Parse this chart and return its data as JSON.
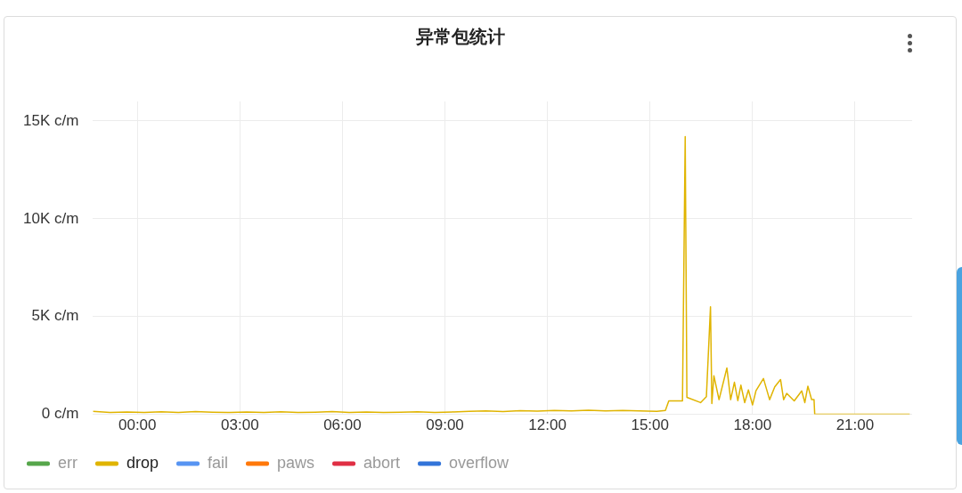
{
  "chart_data": {
    "type": "line",
    "title": "异常包统计",
    "xlim": [
      -1.3,
      22.67
    ],
    "xticks": [
      {
        "value": 0,
        "label": "00:00"
      },
      {
        "value": 3,
        "label": "03:00"
      },
      {
        "value": 6,
        "label": "06:00"
      },
      {
        "value": 9,
        "label": "09:00"
      },
      {
        "value": 12,
        "label": "12:00"
      },
      {
        "value": 15,
        "label": "15:00"
      },
      {
        "value": 18,
        "label": "18:00"
      },
      {
        "value": 21,
        "label": "21:00"
      }
    ],
    "ylim": [
      0,
      16000
    ],
    "yticks": [
      {
        "value": 0,
        "label": "0 c/m"
      },
      {
        "value": 5000,
        "label": "5K c/m"
      },
      {
        "value": 10000,
        "label": "10K c/m"
      },
      {
        "value": 15000,
        "label": "15K c/m"
      }
    ],
    "grid": true,
    "legend": "bottom left",
    "marker": "none",
    "line_style": "solid",
    "x": [
      -1.3,
      -0.8,
      -0.3,
      0.2,
      0.7,
      1.2,
      1.7,
      2.2,
      2.7,
      3.2,
      3.7,
      4.2,
      4.7,
      5.2,
      5.7,
      6.2,
      6.7,
      7.2,
      7.7,
      8.2,
      8.7,
      9.2,
      9.7,
      10.2,
      10.7,
      11.2,
      11.7,
      12.2,
      12.7,
      13.2,
      13.7,
      14.2,
      14.7,
      15.2,
      15.45,
      15.55,
      15.95,
      16.03,
      16.08,
      16.48,
      16.65,
      16.77,
      16.81,
      16.87,
      17.02,
      17.25,
      17.36,
      17.47,
      17.57,
      17.66,
      17.77,
      17.88,
      18.0,
      18.1,
      18.32,
      18.5,
      18.65,
      18.82,
      18.91,
      19.0,
      19.22,
      19.44,
      19.53,
      19.62,
      19.73,
      19.8,
      19.82,
      20.5,
      21.5,
      22.6
    ],
    "series": [
      {
        "name": "err",
        "color": "#56a64b",
        "values": [
          null,
          null,
          null,
          null,
          null,
          null,
          null,
          null,
          null,
          null,
          null,
          null,
          null,
          null,
          null,
          null,
          null,
          null,
          null,
          null,
          null,
          null,
          null,
          null,
          null,
          null,
          null,
          null,
          null,
          null,
          null,
          null,
          null,
          null,
          null,
          null,
          null,
          null,
          null,
          null,
          null,
          null,
          null,
          null,
          null,
          null,
          null,
          null,
          null,
          null,
          null,
          null,
          null,
          null,
          null,
          null,
          null,
          null,
          null,
          null,
          null,
          null,
          null,
          null,
          null,
          null,
          null,
          null,
          null,
          null
        ]
      },
      {
        "name": "drop",
        "color": "#e0b400",
        "values": [
          150,
          100,
          120,
          90,
          130,
          100,
          140,
          110,
          90,
          120,
          100,
          130,
          90,
          110,
          140,
          100,
          120,
          90,
          110,
          130,
          100,
          120,
          150,
          170,
          140,
          190,
          160,
          200,
          170,
          210,
          180,
          200,
          170,
          150,
          200,
          690,
          690,
          14200,
          870,
          600,
          900,
          5500,
          550,
          1970,
          750,
          2370,
          750,
          1640,
          700,
          1490,
          600,
          1250,
          480,
          1200,
          1830,
          750,
          1400,
          1780,
          750,
          1070,
          690,
          1200,
          600,
          1440,
          750,
          750,
          0,
          0,
          0,
          0
        ]
      },
      {
        "name": "fail",
        "color": "#5794f2",
        "values": [
          null,
          null,
          null,
          null,
          null,
          null,
          null,
          null,
          null,
          null,
          null,
          null,
          null,
          null,
          null,
          null,
          null,
          null,
          null,
          null,
          null,
          null,
          null,
          null,
          null,
          null,
          null,
          null,
          null,
          null,
          null,
          null,
          null,
          null,
          null,
          null,
          null,
          null,
          null,
          null,
          null,
          null,
          null,
          null,
          null,
          null,
          null,
          null,
          null,
          null,
          null,
          null,
          null,
          null,
          null,
          null,
          null,
          null,
          null,
          null,
          null,
          null,
          null,
          null,
          null,
          null,
          null,
          null,
          null,
          null
        ]
      },
      {
        "name": "paws",
        "color": "#ff780a",
        "values": [
          null,
          null,
          null,
          null,
          null,
          null,
          null,
          null,
          null,
          null,
          null,
          null,
          null,
          null,
          null,
          null,
          null,
          null,
          null,
          null,
          null,
          null,
          null,
          null,
          null,
          null,
          null,
          null,
          null,
          null,
          null,
          null,
          null,
          null,
          null,
          null,
          null,
          null,
          null,
          null,
          null,
          null,
          null,
          null,
          null,
          null,
          null,
          null,
          null,
          null,
          null,
          null,
          null,
          null,
          null,
          null,
          null,
          null,
          null,
          null,
          null,
          null,
          null,
          null,
          null,
          null,
          null,
          null,
          null,
          null
        ]
      },
      {
        "name": "abort",
        "color": "#e02f44",
        "values": [
          null,
          null,
          null,
          null,
          null,
          null,
          null,
          null,
          null,
          null,
          null,
          null,
          null,
          null,
          null,
          null,
          null,
          null,
          null,
          null,
          null,
          null,
          null,
          null,
          null,
          null,
          null,
          null,
          null,
          null,
          null,
          null,
          null,
          null,
          null,
          null,
          null,
          null,
          null,
          null,
          null,
          null,
          null,
          null,
          null,
          null,
          null,
          null,
          null,
          null,
          null,
          null,
          null,
          null,
          null,
          null,
          null,
          null,
          null,
          null,
          null,
          null,
          null,
          null,
          null,
          null,
          null,
          null,
          null,
          null
        ]
      },
      {
        "name": "overflow",
        "color": "#3274d9",
        "values": [
          null,
          null,
          null,
          null,
          null,
          null,
          null,
          null,
          null,
          null,
          null,
          null,
          null,
          null,
          null,
          null,
          null,
          null,
          null,
          null,
          null,
          null,
          null,
          null,
          null,
          null,
          null,
          null,
          null,
          null,
          null,
          null,
          null,
          null,
          null,
          null,
          null,
          null,
          null,
          null,
          null,
          null,
          null,
          null,
          null,
          null,
          null,
          null,
          null,
          null,
          null,
          null,
          null,
          null,
          null,
          null,
          null,
          null,
          null,
          null,
          null,
          null,
          null,
          null,
          null,
          null,
          null,
          null,
          null,
          null
        ]
      }
    ]
  }
}
